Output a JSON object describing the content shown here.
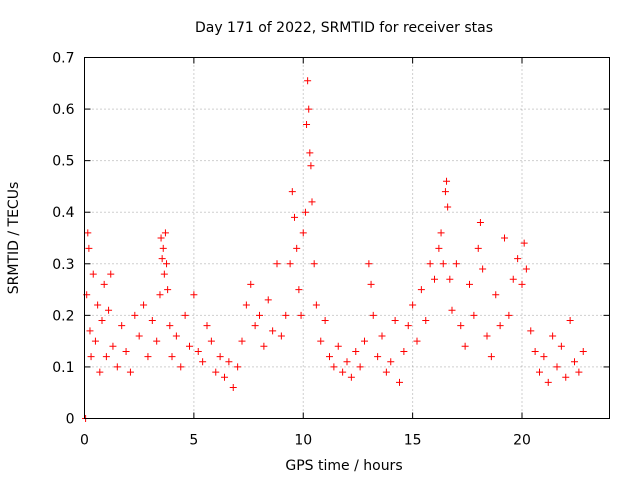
{
  "chart_data": {
    "type": "scatter",
    "title": "Day 171 of 2022, SRMTID for receiver stas",
    "xlabel": "GPS time / hours",
    "ylabel": "SRMTID / TECUs",
    "xlim": [
      0,
      24
    ],
    "ylim": [
      0,
      0.7
    ],
    "xticks": [
      "0",
      "5",
      "10",
      "15",
      "20"
    ],
    "yticks": [
      "0",
      "0.1",
      "0.2",
      "0.3",
      "0.4",
      "0.5",
      "0.6",
      "0.7"
    ],
    "grid": true,
    "marker": "+",
    "series": [
      {
        "name": "SRMTID",
        "color": "#ff0000",
        "points": [
          [
            0.05,
            0.0
          ],
          [
            0.1,
            0.24
          ],
          [
            0.15,
            0.36
          ],
          [
            0.2,
            0.33
          ],
          [
            0.25,
            0.17
          ],
          [
            0.3,
            0.12
          ],
          [
            0.4,
            0.28
          ],
          [
            0.5,
            0.15
          ],
          [
            0.6,
            0.22
          ],
          [
            0.7,
            0.09
          ],
          [
            0.8,
            0.19
          ],
          [
            0.9,
            0.26
          ],
          [
            1.0,
            0.12
          ],
          [
            1.1,
            0.21
          ],
          [
            1.2,
            0.28
          ],
          [
            1.3,
            0.14
          ],
          [
            1.5,
            0.1
          ],
          [
            1.7,
            0.18
          ],
          [
            1.9,
            0.13
          ],
          [
            2.1,
            0.09
          ],
          [
            2.3,
            0.2
          ],
          [
            2.5,
            0.16
          ],
          [
            2.7,
            0.22
          ],
          [
            2.9,
            0.12
          ],
          [
            3.1,
            0.19
          ],
          [
            3.3,
            0.15
          ],
          [
            3.45,
            0.24
          ],
          [
            3.5,
            0.35
          ],
          [
            3.55,
            0.31
          ],
          [
            3.6,
            0.33
          ],
          [
            3.65,
            0.28
          ],
          [
            3.7,
            0.36
          ],
          [
            3.75,
            0.3
          ],
          [
            3.8,
            0.25
          ],
          [
            3.9,
            0.18
          ],
          [
            4.0,
            0.12
          ],
          [
            4.2,
            0.16
          ],
          [
            4.4,
            0.1
          ],
          [
            4.6,
            0.2
          ],
          [
            4.8,
            0.14
          ],
          [
            5.0,
            0.24
          ],
          [
            5.2,
            0.13
          ],
          [
            5.4,
            0.11
          ],
          [
            5.6,
            0.18
          ],
          [
            5.8,
            0.15
          ],
          [
            6.0,
            0.09
          ],
          [
            6.2,
            0.12
          ],
          [
            6.4,
            0.08
          ],
          [
            6.6,
            0.11
          ],
          [
            6.8,
            0.06
          ],
          [
            7.0,
            0.1
          ],
          [
            7.2,
            0.15
          ],
          [
            7.4,
            0.22
          ],
          [
            7.6,
            0.26
          ],
          [
            7.8,
            0.18
          ],
          [
            8.0,
            0.2
          ],
          [
            8.2,
            0.14
          ],
          [
            8.4,
            0.23
          ],
          [
            8.6,
            0.17
          ],
          [
            8.8,
            0.3
          ],
          [
            9.0,
            0.16
          ],
          [
            9.2,
            0.2
          ],
          [
            9.4,
            0.3
          ],
          [
            9.5,
            0.44
          ],
          [
            9.6,
            0.39
          ],
          [
            9.7,
            0.33
          ],
          [
            9.8,
            0.25
          ],
          [
            9.9,
            0.2
          ],
          [
            10.0,
            0.36
          ],
          [
            10.1,
            0.4
          ],
          [
            10.15,
            0.57
          ],
          [
            10.2,
            0.655
          ],
          [
            10.25,
            0.6
          ],
          [
            10.3,
            0.515
          ],
          [
            10.35,
            0.49
          ],
          [
            10.4,
            0.42
          ],
          [
            10.5,
            0.3
          ],
          [
            10.6,
            0.22
          ],
          [
            10.8,
            0.15
          ],
          [
            11.0,
            0.19
          ],
          [
            11.2,
            0.12
          ],
          [
            11.4,
            0.1
          ],
          [
            11.6,
            0.14
          ],
          [
            11.8,
            0.09
          ],
          [
            12.0,
            0.11
          ],
          [
            12.2,
            0.08
          ],
          [
            12.4,
            0.13
          ],
          [
            12.6,
            0.1
          ],
          [
            12.8,
            0.15
          ],
          [
            13.0,
            0.3
          ],
          [
            13.1,
            0.26
          ],
          [
            13.2,
            0.2
          ],
          [
            13.4,
            0.12
          ],
          [
            13.6,
            0.16
          ],
          [
            13.8,
            0.09
          ],
          [
            14.0,
            0.11
          ],
          [
            14.2,
            0.19
          ],
          [
            14.4,
            0.07
          ],
          [
            14.6,
            0.13
          ],
          [
            14.8,
            0.18
          ],
          [
            15.0,
            0.22
          ],
          [
            15.2,
            0.15
          ],
          [
            15.4,
            0.25
          ],
          [
            15.6,
            0.19
          ],
          [
            15.8,
            0.3
          ],
          [
            16.0,
            0.27
          ],
          [
            16.2,
            0.33
          ],
          [
            16.3,
            0.36
          ],
          [
            16.4,
            0.3
          ],
          [
            16.5,
            0.44
          ],
          [
            16.55,
            0.46
          ],
          [
            16.6,
            0.41
          ],
          [
            16.7,
            0.27
          ],
          [
            16.8,
            0.21
          ],
          [
            17.0,
            0.3
          ],
          [
            17.2,
            0.18
          ],
          [
            17.4,
            0.14
          ],
          [
            17.6,
            0.26
          ],
          [
            17.8,
            0.2
          ],
          [
            18.0,
            0.33
          ],
          [
            18.1,
            0.38
          ],
          [
            18.2,
            0.29
          ],
          [
            18.4,
            0.16
          ],
          [
            18.6,
            0.12
          ],
          [
            18.8,
            0.24
          ],
          [
            19.0,
            0.18
          ],
          [
            19.2,
            0.35
          ],
          [
            19.4,
            0.2
          ],
          [
            19.6,
            0.27
          ],
          [
            19.8,
            0.31
          ],
          [
            20.0,
            0.26
          ],
          [
            20.1,
            0.34
          ],
          [
            20.2,
            0.29
          ],
          [
            20.4,
            0.17
          ],
          [
            20.6,
            0.13
          ],
          [
            20.8,
            0.09
          ],
          [
            21.0,
            0.12
          ],
          [
            21.2,
            0.07
          ],
          [
            21.4,
            0.16
          ],
          [
            21.6,
            0.1
          ],
          [
            21.8,
            0.14
          ],
          [
            22.0,
            0.08
          ],
          [
            22.2,
            0.19
          ],
          [
            22.4,
            0.11
          ],
          [
            22.6,
            0.09
          ],
          [
            22.8,
            0.13
          ]
        ]
      }
    ]
  }
}
